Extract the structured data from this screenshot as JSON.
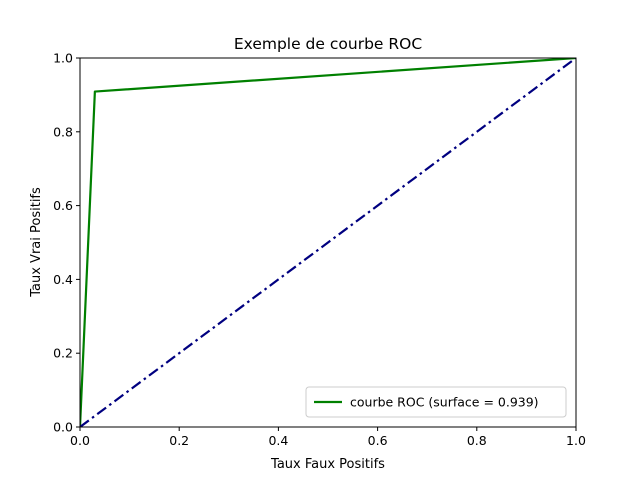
{
  "chart_data": {
    "type": "line",
    "title": "Exemple de courbe ROC",
    "xlabel": "Taux Faux Positifs",
    "ylabel": "Taux Vrai Positifs",
    "xlim": [
      0.0,
      1.0
    ],
    "ylim": [
      0.0,
      1.0
    ],
    "x_ticks": [
      "0.0",
      "0.2",
      "0.4",
      "0.6",
      "0.8",
      "1.0"
    ],
    "y_ticks": [
      "0.0",
      "0.2",
      "0.4",
      "0.6",
      "0.8",
      "1.0"
    ],
    "grid": false,
    "legend_placement": "lower-right",
    "series": [
      {
        "name": "courbe ROC (surface = 0.939)",
        "color": "#008000",
        "line_style": "solid",
        "x": [
          0.0,
          0.03,
          1.0
        ],
        "y": [
          0.0,
          0.909,
          1.0
        ]
      },
      {
        "color": "#000080",
        "line_style": "dashdot",
        "x": [
          0.0,
          1.0
        ],
        "y": [
          0.0,
          1.0
        ]
      }
    ]
  }
}
